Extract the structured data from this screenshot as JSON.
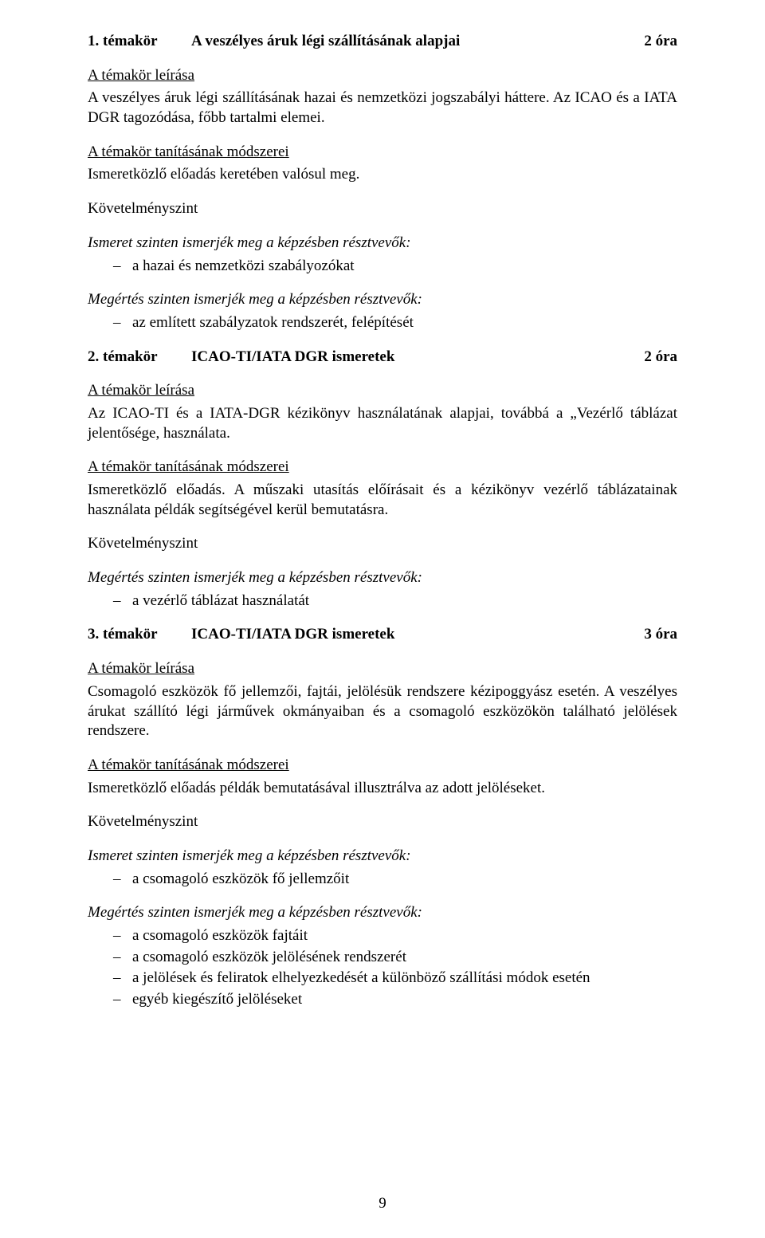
{
  "page_number": "9",
  "labels": {
    "topic_desc_heading": "A témakör leírása",
    "teaching_methods_heading": "A témakör tanításának módszerei",
    "requirement_level_heading": "Követelményszint",
    "knowledge_level_intro": "Ismeret szinten ismerjék meg a képzésben résztvevők:",
    "understanding_level_intro": "Megértés szinten ismerjék meg a képzésben résztvevők:"
  },
  "topics": [
    {
      "num": "1. témakör",
      "title": "A veszélyes áruk légi szállításának alapjai",
      "hours": "2 óra",
      "description": "A veszélyes áruk légi szállításának hazai és nemzetközi jogszabályi háttere. Az ICAO és a IATA DGR tagozódása, főbb tartalmi elemei.",
      "teaching_methods": "Ismeretközlő előadás keretében valósul meg.",
      "knowledge_items": [
        "a hazai és nemzetközi szabályozókat"
      ],
      "understanding_items": [
        "az említett szabályzatok rendszerét, felépítését"
      ]
    },
    {
      "num": "2. témakör",
      "title": "ICAO-TI/IATA DGR ismeretek",
      "hours": "2 óra",
      "description": "Az ICAO-TI és a IATA-DGR kézikönyv használatának alapjai, továbbá a „Vezérlő táblázat jelentősége, használata.",
      "teaching_methods": "Ismeretközlő előadás. A műszaki utasítás előírásait és a kézikönyv vezérlő táblázatainak használata példák segítségével kerül bemutatásra.",
      "knowledge_items": [],
      "understanding_items": [
        "a vezérlő táblázat használatát"
      ]
    },
    {
      "num": "3. témakör",
      "title": "ICAO-TI/IATA DGR ismeretek",
      "hours": "3 óra",
      "description": "Csomagoló eszközök fő jellemzői, fajtái, jelölésük rendszere kézipoggyász esetén. A veszélyes árukat szállító légi járművek okmányaiban és a csomagoló eszközökön található jelölések rendszere.",
      "teaching_methods": "Ismeretközlő előadás példák bemutatásával illusztrálva az adott jelöléseket.",
      "knowledge_items": [
        "a csomagoló eszközök fő jellemzőit"
      ],
      "understanding_items": [
        "a csomagoló eszközök fajtáit",
        "a csomagoló eszközök jelölésének rendszerét",
        "a jelölések és feliratok elhelyezkedését a különböző szállítási módok esetén",
        "egyéb kiegészítő jelöléseket"
      ]
    }
  ]
}
